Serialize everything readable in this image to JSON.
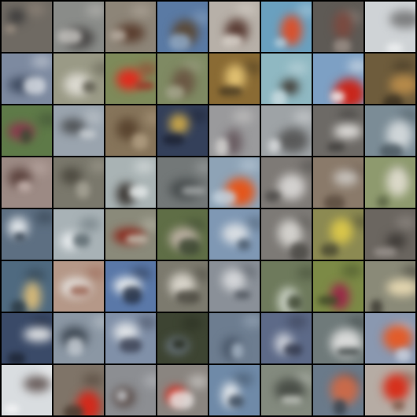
{
  "grid": {
    "rows": 8,
    "cols": 8,
    "border_color": "#000000",
    "tiles": [
      {
        "bg": "#6f6a63",
        "fg": "#3b3a3a",
        "accent": "#9a8d80"
      },
      {
        "bg": "#8a8c89",
        "fg": "#4a4847",
        "accent": "#c2c0bc"
      },
      {
        "bg": "#8d8578",
        "fg": "#5b3f30",
        "accent": "#b8aea2"
      },
      {
        "bg": "#5a7aa4",
        "fg": "#5a4a3a",
        "accent": "#8fa8c4"
      },
      {
        "bg": "#b7b0a8",
        "fg": "#5b3e36",
        "accent": "#d8d2ca"
      },
      {
        "bg": "#6aa0bf",
        "fg": "#d8512e",
        "accent": "#b7d2e0"
      },
      {
        "bg": "#5e5a55",
        "fg": "#7a4a40",
        "accent": "#9a8e86"
      },
      {
        "bg": "#cfd3d6",
        "fg": "#7c7d7e",
        "accent": "#eef0f1"
      },
      {
        "bg": "#7d8aa0",
        "fg": "#3f4b60",
        "accent": "#d6dbe2"
      },
      {
        "bg": "#9a9a86",
        "fg": "#dad8cf",
        "accent": "#5c5a4d"
      },
      {
        "bg": "#7e8a5a",
        "fg": "#e02c1e",
        "accent": "#9c3527"
      },
      {
        "bg": "#7f8a63",
        "fg": "#6b5844",
        "accent": "#a5a58c"
      },
      {
        "bg": "#8a6b34",
        "fg": "#e0c071",
        "accent": "#4a3b22"
      },
      {
        "bg": "#8fb8c2",
        "fg": "#403a33",
        "accent": "#c9dbe0"
      },
      {
        "bg": "#7da0c4",
        "fg": "#c9261b",
        "accent": "#f1f1f1"
      },
      {
        "bg": "#6e5c3c",
        "fg": "#b68a4a",
        "accent": "#3c3222"
      },
      {
        "bg": "#5e7a48",
        "fg": "#8a3a4e",
        "accent": "#3c4a33"
      },
      {
        "bg": "#9aa4ae",
        "fg": "#4f5255",
        "accent": "#cbd0d4"
      },
      {
        "bg": "#86745a",
        "fg": "#5a4530",
        "accent": "#b19e82"
      },
      {
        "bg": "#34405a",
        "fg": "#c9a64a",
        "accent": "#1c2233"
      },
      {
        "bg": "#9a9a9c",
        "fg": "#6a5d62",
        "accent": "#d2d0ce"
      },
      {
        "bg": "#9ea3a6",
        "fg": "#5a5a5a",
        "accent": "#dadcde"
      },
      {
        "bg": "#6d6a66",
        "fg": "#e0dedb",
        "accent": "#3e3c3a"
      },
      {
        "bg": "#7b8c96",
        "fg": "#cfd5d8",
        "accent": "#4d5a62"
      },
      {
        "bg": "#9c8a84",
        "fg": "#5e4540",
        "accent": "#c4b2ac"
      },
      {
        "bg": "#7a786c",
        "fg": "#4d4a40",
        "accent": "#a6a396"
      },
      {
        "bg": "#a9b3b4",
        "fg": "#3e3a36",
        "accent": "#e6eaea"
      },
      {
        "bg": "#737878",
        "fg": "#4a4f50",
        "accent": "#a4a8a8"
      },
      {
        "bg": "#8ea3b6",
        "fg": "#e4561c",
        "accent": "#c4d2de"
      },
      {
        "bg": "#7e7a76",
        "fg": "#d3d1cf",
        "accent": "#4c4a48"
      },
      {
        "bg": "#8a7a6a",
        "fg": "#c7c2bc",
        "accent": "#5c4d40"
      },
      {
        "bg": "#8e9a6e",
        "fg": "#dad8c8",
        "accent": "#5c6646"
      },
      {
        "bg": "#5d6f82",
        "fg": "#dfe4e8",
        "accent": "#2d3a48"
      },
      {
        "bg": "#a8b2b6",
        "fg": "#e8ecee",
        "accent": "#5d6a70"
      },
      {
        "bg": "#8a8a7a",
        "fg": "#8a2a1e",
        "accent": "#c0beb0"
      },
      {
        "bg": "#5f6e46",
        "fg": "#b9aea0",
        "accent": "#3a4530"
      },
      {
        "bg": "#7f98b4",
        "fg": "#d8dde2",
        "accent": "#4a5a6c"
      },
      {
        "bg": "#7d7a76",
        "fg": "#d2d0cc",
        "accent": "#4c4a46"
      },
      {
        "bg": "#8c8a52",
        "fg": "#d8c54a",
        "accent": "#4b4a32"
      },
      {
        "bg": "#6b6660",
        "fg": "#3e3a36",
        "accent": "#9c9590"
      },
      {
        "bg": "#4f6a80",
        "fg": "#d6b978",
        "accent": "#2c3a44"
      },
      {
        "bg": "#b59888",
        "fg": "#e3e0dc",
        "accent": "#9a6452"
      },
      {
        "bg": "#5a78a8",
        "fg": "#e8ecee",
        "accent": "#253044"
      },
      {
        "bg": "#7c7a6e",
        "fg": "#d6d2c8",
        "accent": "#4b4940"
      },
      {
        "bg": "#8a9098",
        "fg": "#d3d5d8",
        "accent": "#4e545c"
      },
      {
        "bg": "#6e7a5c",
        "fg": "#c8cfc2",
        "accent": "#3f4833"
      },
      {
        "bg": "#7c8a46",
        "fg": "#9a2a48",
        "accent": "#3f4a28"
      },
      {
        "bg": "#8a8a78",
        "fg": "#e4d6b0",
        "accent": "#3e3c34"
      },
      {
        "bg": "#3a4a68",
        "fg": "#e2e4e6",
        "accent": "#1e2636"
      },
      {
        "bg": "#8b97a4",
        "fg": "#404a55",
        "accent": "#c3cad1"
      },
      {
        "bg": "#8090a8",
        "fg": "#dee2e6",
        "accent": "#3e4456"
      },
      {
        "bg": "#3d4432",
        "fg": "#6e7a84",
        "accent": "#262b1e"
      },
      {
        "bg": "#6d7d90",
        "fg": "#4a586a",
        "accent": "#a3b2c2"
      },
      {
        "bg": "#5d6a88",
        "fg": "#c9cdd6",
        "accent": "#33394c"
      },
      {
        "bg": "#6f7a7a",
        "fg": "#d8d9d8",
        "accent": "#3e4646"
      },
      {
        "bg": "#8a98b0",
        "fg": "#e25c2a",
        "accent": "#c7d0de"
      },
      {
        "bg": "#d9dde0",
        "fg": "#6a5e5c",
        "accent": "#f4f5f6"
      },
      {
        "bg": "#7f7468",
        "fg": "#d22a1c",
        "accent": "#4a3b30"
      },
      {
        "bg": "#8c8e92",
        "fg": "#5a4c48",
        "accent": "#c0c2c6"
      },
      {
        "bg": "#8a8580",
        "fg": "#d72a1c",
        "accent": "#e6e4e2"
      },
      {
        "bg": "#6f8aa8",
        "fg": "#e4e8ec",
        "accent": "#3b4a5c"
      },
      {
        "bg": "#838a7e",
        "fg": "#4a4f48",
        "accent": "#c0c4bc"
      },
      {
        "bg": "#6a7a8a",
        "fg": "#c96a4a",
        "accent": "#3a444e"
      },
      {
        "bg": "#b6aca4",
        "fg": "#d6301c",
        "accent": "#7e5a4a"
      }
    ]
  }
}
